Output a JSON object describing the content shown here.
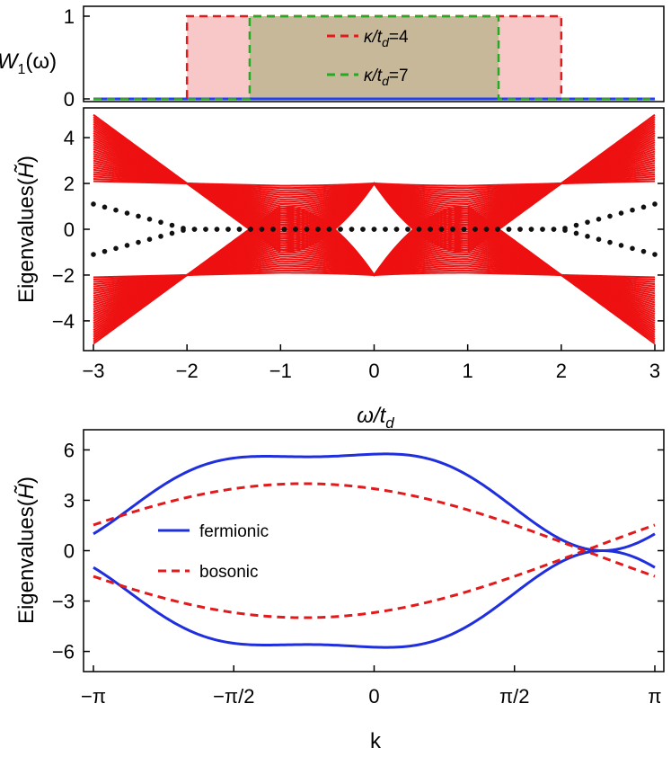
{
  "chart_data": [
    {
      "id": "top",
      "type": "line",
      "ylabel": "W1(ω)",
      "xlim": [
        -3,
        3
      ],
      "ylim": [
        0,
        1
      ],
      "yticks": [
        0,
        1
      ],
      "series": [
        {
          "name": "κ/td=4",
          "x": [
            -3,
            -2,
            -2,
            2,
            2,
            3
          ],
          "values": [
            0,
            0,
            1,
            1,
            0,
            0
          ],
          "color": "#e31a1c",
          "dash": true,
          "fill": "#f8c8c8"
        },
        {
          "name": "κ/td=7",
          "x": [
            -3,
            -1.33,
            -1.33,
            1.33,
            1.33,
            3
          ],
          "values": [
            0,
            0,
            1,
            1,
            0,
            0
          ],
          "color": "#22aa22",
          "dash": true,
          "fill": "#c8b89a"
        }
      ],
      "baseline_color": "#1f3fff"
    },
    {
      "id": "middle",
      "type": "line",
      "xlabel": "ω/td",
      "ylabel": "Eigenvalues(H̃)",
      "xlim": [
        -3,
        3
      ],
      "ylim": [
        -5.3,
        5.3
      ],
      "xticks": [
        -3,
        -2,
        -1,
        0,
        1,
        2,
        3
      ],
      "yticks": [
        -4,
        -2,
        0,
        2,
        4
      ],
      "bands": {
        "amplitudes": [
          3.0,
          2.9,
          2.8,
          2.7,
          2.6,
          2.5,
          2.4,
          2.3,
          2.2,
          2.1,
          2.0,
          1.9,
          1.8,
          1.7,
          1.6,
          1.5,
          1.4,
          1.3,
          1.2,
          1.1,
          1.0,
          0.9,
          0.8,
          0.7,
          0.6,
          0.5,
          0.4,
          0.3,
          0.2,
          0.1
        ],
        "center": 2,
        "color": "#ee1111"
      },
      "dots": {
        "outer_value": 1.1,
        "color": "#111111"
      }
    },
    {
      "id": "bottom",
      "type": "line",
      "xlabel": "k",
      "ylabel": "Eigenvalues(H̃)",
      "xlim": [
        -3.14159,
        3.14159
      ],
      "ylim": [
        -7.2,
        7.2
      ],
      "xticks": [
        "−π",
        "−π/2",
        "0",
        "π/2",
        "π"
      ],
      "yticks": [
        -6,
        -3,
        0,
        3,
        6
      ],
      "series": [
        {
          "name": "fermionic",
          "color": "#1f2fdd",
          "dash": false
        },
        {
          "name": "bosonic",
          "color": "#e31a1c",
          "dash": true
        }
      ],
      "legend_position": "center-left"
    }
  ],
  "labels": {
    "top_ylabel_main": "W",
    "top_ylabel_sub": "1",
    "top_ylabel_arg": "(ω)",
    "mid_xlabel_main": "ω/t",
    "mid_xlabel_sub": "d",
    "eig_label": "Eigenvalues(",
    "eig_symbol": "H̃",
    "eig_close": ")",
    "bottom_xlabel": "k",
    "legend_top_1_main": "κ/t",
    "legend_top_1_sub": "d",
    "legend_top_1_val": "=4",
    "legend_top_2_main": "κ/t",
    "legend_top_2_sub": "d",
    "legend_top_2_val": "=7",
    "legend_bottom_1": "fermionic",
    "legend_bottom_2": "bosonic"
  }
}
